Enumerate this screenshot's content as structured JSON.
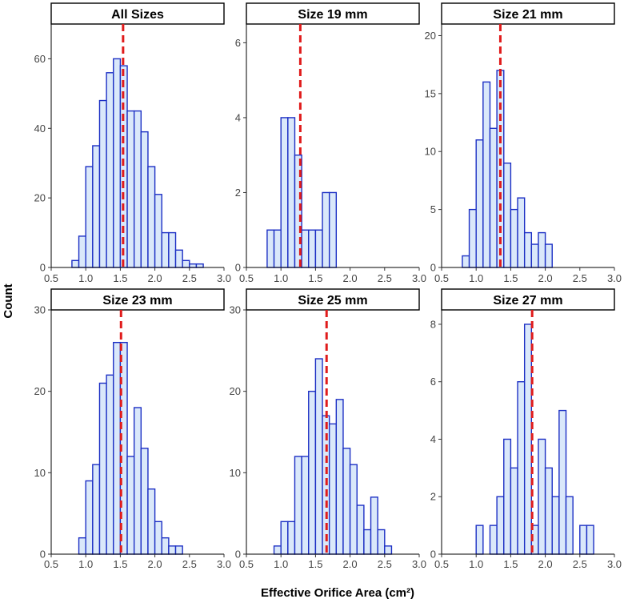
{
  "chart_data": {
    "type": "bar",
    "subtype": "faceted-histogram",
    "xlabel": "Effective Orifice Area (cm²)",
    "ylabel": "Count",
    "xlim": [
      0.5,
      3.0
    ],
    "xticks": [
      "0.5",
      "1.0",
      "1.5",
      "2.0",
      "2.5",
      "3.0"
    ],
    "bin_width": 0.1,
    "mean_line_color": "#e01b1b",
    "bar_fill": "#dae8fa",
    "bar_edge": "#1c2fc4",
    "panels": [
      {
        "title": "All Sizes",
        "ylim": [
          0,
          70
        ],
        "yticks": [
          "0",
          "20",
          "40",
          "60"
        ],
        "mean": 1.54,
        "bin_starts": [
          0.8,
          0.9,
          1.0,
          1.1,
          1.2,
          1.3,
          1.4,
          1.5,
          1.6,
          1.7,
          1.8,
          1.9,
          2.0,
          2.1,
          2.2,
          2.3,
          2.4,
          2.5,
          2.6
        ],
        "counts": [
          2,
          9,
          29,
          35,
          48,
          56,
          60,
          58,
          45,
          45,
          39,
          29,
          21,
          10,
          10,
          5,
          2,
          1,
          1
        ]
      },
      {
        "title": "Size 19 mm",
        "ylim": [
          0,
          6.5
        ],
        "yticks": [
          "0",
          "2",
          "4",
          "6"
        ],
        "mean": 1.28,
        "bin_starts": [
          0.8,
          0.9,
          1.0,
          1.1,
          1.2,
          1.3,
          1.4,
          1.5,
          1.6,
          1.7
        ],
        "counts": [
          1,
          1,
          4,
          4,
          3,
          1,
          1,
          1,
          2,
          2
        ]
      },
      {
        "title": "Size 21 mm",
        "ylim": [
          0,
          21
        ],
        "yticks": [
          "0",
          "5",
          "10",
          "15",
          "20"
        ],
        "mean": 1.35,
        "bin_starts": [
          0.8,
          0.9,
          1.0,
          1.1,
          1.2,
          1.3,
          1.4,
          1.5,
          1.6,
          1.7,
          1.8,
          1.9,
          2.0
        ],
        "counts": [
          1,
          5,
          11,
          16,
          12,
          17,
          9,
          5,
          6,
          3,
          2,
          3,
          2
        ]
      },
      {
        "title": "Size 23 mm",
        "ylim": [
          0,
          30
        ],
        "yticks": [
          "0",
          "10",
          "20",
          "30"
        ],
        "mean": 1.51,
        "bin_starts": [
          0.9,
          1.0,
          1.1,
          1.2,
          1.3,
          1.4,
          1.5,
          1.6,
          1.7,
          1.8,
          1.9,
          2.0,
          2.1,
          2.2,
          2.3
        ],
        "counts": [
          2,
          9,
          11,
          21,
          22,
          26,
          26,
          12,
          18,
          13,
          8,
          4,
          2,
          1,
          1
        ]
      },
      {
        "title": "Size 25 mm",
        "ylim": [
          0,
          30
        ],
        "yticks": [
          "0",
          "10",
          "20",
          "30"
        ],
        "mean": 1.66,
        "bin_starts": [
          0.9,
          1.0,
          1.1,
          1.2,
          1.3,
          1.4,
          1.5,
          1.6,
          1.7,
          1.8,
          1.9,
          2.0,
          2.1,
          2.2,
          2.3,
          2.4,
          2.5
        ],
        "counts": [
          1,
          4,
          4,
          12,
          12,
          20,
          24,
          17,
          16,
          19,
          13,
          11,
          6,
          3,
          7,
          3,
          1
        ]
      },
      {
        "title": "Size 27 mm",
        "ylim": [
          0,
          8.5
        ],
        "yticks": [
          "0",
          "2",
          "4",
          "6",
          "8"
        ],
        "mean": 1.81,
        "bin_starts": [
          1.0,
          1.1,
          1.2,
          1.3,
          1.4,
          1.5,
          1.6,
          1.7,
          1.8,
          1.9,
          2.0,
          2.1,
          2.2,
          2.3,
          2.4,
          2.5,
          2.6
        ],
        "counts": [
          1,
          0,
          1,
          2,
          4,
          3,
          6,
          8,
          1,
          4,
          3,
          2,
          5,
          2,
          0,
          1,
          1
        ]
      }
    ]
  }
}
